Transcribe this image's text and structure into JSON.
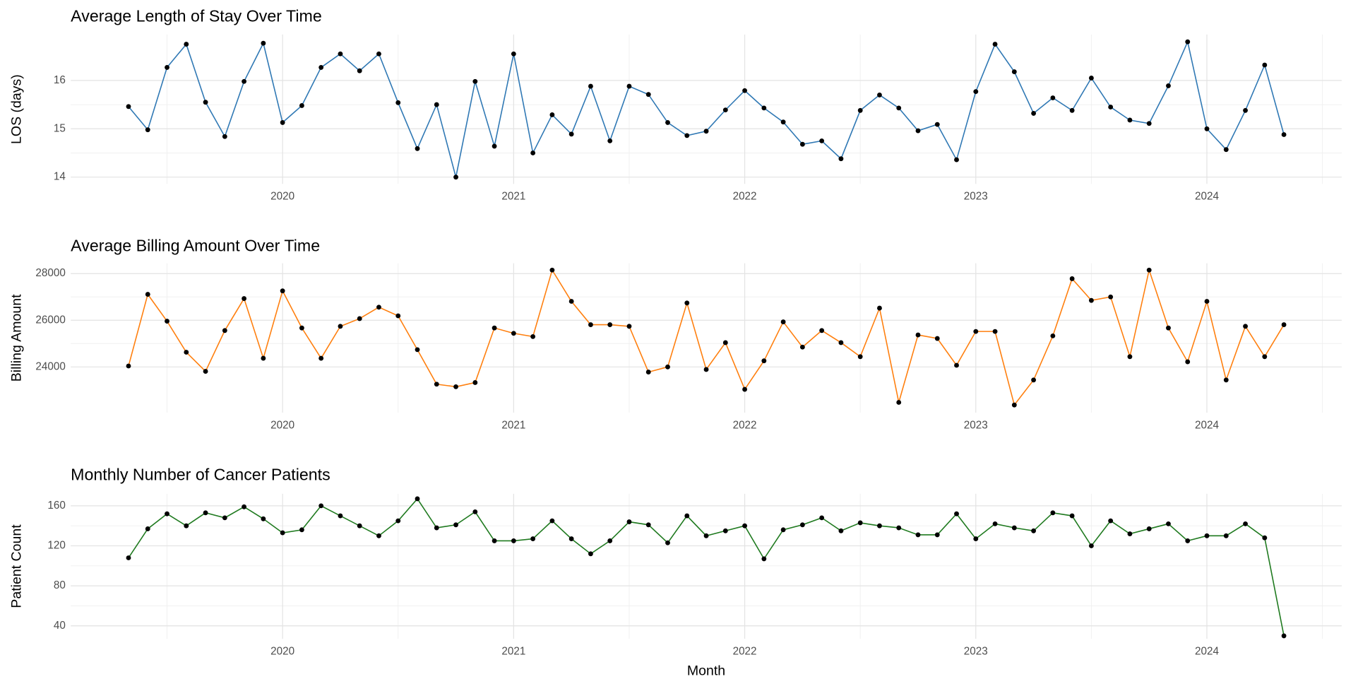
{
  "chart_data": [
    {
      "type": "line",
      "title": "Average Length of Stay Over Time",
      "ylabel": "LOS (days)",
      "x": [
        "2019-05",
        "2019-06",
        "2019-07",
        "2019-08",
        "2019-09",
        "2019-10",
        "2019-11",
        "2019-12",
        "2020-01",
        "2020-02",
        "2020-03",
        "2020-04",
        "2020-05",
        "2020-06",
        "2020-07",
        "2020-08",
        "2020-09",
        "2020-10",
        "2020-11",
        "2020-12",
        "2021-01",
        "2021-02",
        "2021-03",
        "2021-04",
        "2021-05",
        "2021-06",
        "2021-07",
        "2021-08",
        "2021-09",
        "2021-10",
        "2021-11",
        "2021-12",
        "2022-01",
        "2022-02",
        "2022-03",
        "2022-04",
        "2022-05",
        "2022-06",
        "2022-07",
        "2022-08",
        "2022-09",
        "2022-10",
        "2022-11",
        "2022-12",
        "2023-01",
        "2023-02",
        "2023-03",
        "2023-04",
        "2023-05",
        "2023-06",
        "2023-07",
        "2023-08",
        "2023-09",
        "2023-10",
        "2023-11",
        "2023-12",
        "2024-01",
        "2024-02",
        "2024-03",
        "2024-04",
        "2024-05"
      ],
      "values": [
        15.46,
        14.98,
        16.27,
        16.75,
        15.55,
        14.84,
        15.98,
        16.77,
        15.13,
        15.48,
        16.27,
        16.55,
        16.2,
        16.55,
        15.54,
        14.59,
        15.5,
        14.0,
        15.98,
        14.64,
        16.55,
        14.5,
        15.29,
        14.89,
        15.88,
        14.75,
        15.88,
        15.71,
        15.13,
        14.86,
        14.95,
        15.39,
        15.79,
        15.43,
        15.14,
        14.68,
        14.75,
        14.38,
        15.38,
        15.7,
        15.43,
        14.96,
        15.09,
        14.36,
        15.77,
        16.75,
        16.18,
        15.32,
        15.64,
        15.38,
        16.05,
        15.45,
        15.18,
        15.11,
        15.89,
        16.8,
        15.0,
        14.57,
        15.38,
        16.32,
        14.88
      ],
      "color": "#2f78b4",
      "marker_color": "#000000",
      "xlim": [
        "2019-02",
        "2024-08"
      ],
      "xticks": [
        {
          "value": "2020-01",
          "label": "2020"
        },
        {
          "value": "2021-01",
          "label": "2021"
        },
        {
          "value": "2022-01",
          "label": "2022"
        },
        {
          "value": "2023-01",
          "label": "2023"
        },
        {
          "value": "2024-01",
          "label": "2024"
        }
      ],
      "ylim": [
        13.86,
        16.95
      ],
      "yticks": [
        14,
        15,
        16
      ],
      "grid": true
    },
    {
      "type": "line",
      "title": "Average Billing Amount Over Time",
      "ylabel": "Billing Amount",
      "x": [
        "2019-05",
        "2019-06",
        "2019-07",
        "2019-08",
        "2019-09",
        "2019-10",
        "2019-11",
        "2019-12",
        "2020-01",
        "2020-02",
        "2020-03",
        "2020-04",
        "2020-05",
        "2020-06",
        "2020-07",
        "2020-08",
        "2020-09",
        "2020-10",
        "2020-11",
        "2020-12",
        "2021-01",
        "2021-02",
        "2021-03",
        "2021-04",
        "2021-05",
        "2021-06",
        "2021-07",
        "2021-08",
        "2021-09",
        "2021-10",
        "2021-11",
        "2021-12",
        "2022-01",
        "2022-02",
        "2022-03",
        "2022-04",
        "2022-05",
        "2022-06",
        "2022-07",
        "2022-08",
        "2022-09",
        "2022-10",
        "2022-11",
        "2022-12",
        "2023-01",
        "2023-02",
        "2023-03",
        "2023-04",
        "2023-05",
        "2023-06",
        "2023-07",
        "2023-08",
        "2023-09",
        "2023-10",
        "2023-11",
        "2023-12",
        "2024-01",
        "2024-02",
        "2024-03",
        "2024-04",
        "2024-05"
      ],
      "values": [
        24040,
        27110,
        25960,
        24630,
        23810,
        25560,
        26930,
        24370,
        27260,
        25670,
        24370,
        25740,
        26070,
        26560,
        26190,
        24740,
        23260,
        23150,
        23330,
        25670,
        25440,
        25300,
        28150,
        26810,
        25810,
        25810,
        25740,
        23780,
        24000,
        26740,
        23890,
        25040,
        23040,
        24260,
        25930,
        24850,
        25560,
        25040,
        24440,
        26520,
        22480,
        25370,
        25220,
        24070,
        25520,
        25520,
        22370,
        23440,
        25330,
        27780,
        26850,
        27000,
        24440,
        28150,
        25670,
        24220,
        26810,
        23440,
        25740,
        24440,
        25810
      ],
      "color": "#ff7f0e",
      "marker_color": "#000000",
      "xlim": [
        "2019-02",
        "2024-08"
      ],
      "xticks": [
        {
          "value": "2020-01",
          "label": "2020"
        },
        {
          "value": "2021-01",
          "label": "2021"
        },
        {
          "value": "2022-01",
          "label": "2022"
        },
        {
          "value": "2023-01",
          "label": "2023"
        },
        {
          "value": "2024-01",
          "label": "2024"
        }
      ],
      "ylim": [
        22040,
        28440
      ],
      "yticks": [
        24000,
        26000,
        28000
      ],
      "grid": true
    },
    {
      "type": "line",
      "title": "Monthly Number of Cancer Patients",
      "ylabel": "Patient Count",
      "xlabel": "Month",
      "x": [
        "2019-05",
        "2019-06",
        "2019-07",
        "2019-08",
        "2019-09",
        "2019-10",
        "2019-11",
        "2019-12",
        "2020-01",
        "2020-02",
        "2020-03",
        "2020-04",
        "2020-05",
        "2020-06",
        "2020-07",
        "2020-08",
        "2020-09",
        "2020-10",
        "2020-11",
        "2020-12",
        "2021-01",
        "2021-02",
        "2021-03",
        "2021-04",
        "2021-05",
        "2021-06",
        "2021-07",
        "2021-08",
        "2021-09",
        "2021-10",
        "2021-11",
        "2021-12",
        "2022-01",
        "2022-02",
        "2022-03",
        "2022-04",
        "2022-05",
        "2022-06",
        "2022-07",
        "2022-08",
        "2022-09",
        "2022-10",
        "2022-11",
        "2022-12",
        "2023-01",
        "2023-02",
        "2023-03",
        "2023-04",
        "2023-05",
        "2023-06",
        "2023-07",
        "2023-08",
        "2023-09",
        "2023-10",
        "2023-11",
        "2023-12",
        "2024-01",
        "2024-02",
        "2024-03",
        "2024-04",
        "2024-05"
      ],
      "values": [
        108,
        137,
        152,
        140,
        153,
        148,
        159,
        147,
        133,
        136,
        160,
        150,
        140,
        130,
        145,
        167,
        138,
        141,
        154,
        125,
        125,
        127,
        145,
        127,
        112,
        125,
        144,
        141,
        123,
        150,
        130,
        135,
        140,
        107,
        136,
        141,
        148,
        135,
        143,
        140,
        138,
        131,
        131,
        152,
        127,
        142,
        138,
        135,
        153,
        150,
        120,
        145,
        132,
        137,
        142,
        125,
        130,
        130,
        142,
        128,
        30
      ],
      "color": "#1f7a1f",
      "marker_color": "#000000",
      "xlim": [
        "2019-02",
        "2024-08"
      ],
      "xticks": [
        {
          "value": "2020-01",
          "label": "2020"
        },
        {
          "value": "2021-01",
          "label": "2021"
        },
        {
          "value": "2022-01",
          "label": "2022"
        },
        {
          "value": "2023-01",
          "label": "2023"
        },
        {
          "value": "2024-01",
          "label": "2024"
        }
      ],
      "ylim": [
        27,
        172
      ],
      "yticks": [
        40,
        80,
        120,
        160
      ],
      "grid": true
    }
  ]
}
